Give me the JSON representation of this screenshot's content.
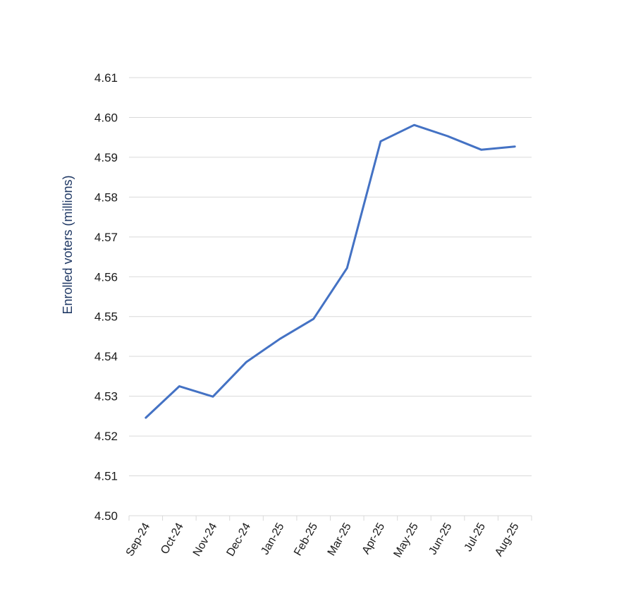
{
  "colors": {
    "series": "#4472c4",
    "axis_title": "#1f3864"
  },
  "chart_data": {
    "type": "line",
    "title": "",
    "xlabel": "",
    "ylabel": "Enrolled voters (millions)",
    "ylim": [
      4.5,
      4.61
    ],
    "yticks": [
      "4.50",
      "4.51",
      "4.52",
      "4.53",
      "4.54",
      "4.55",
      "4.56",
      "4.57",
      "4.58",
      "4.59",
      "4.60",
      "4.61"
    ],
    "grid": true,
    "categories": [
      "Sep-24",
      "Oct-24",
      "Nov-24",
      "Dec-24",
      "Jan-25",
      "Feb-25",
      "Mar-25",
      "Apr-25",
      "May-25",
      "Jun-25",
      "Jul-25",
      "Aug-25"
    ],
    "series": [
      {
        "name": "Enrolled voters",
        "values": [
          4.5246,
          4.5325,
          4.5299,
          4.5386,
          4.5444,
          4.5494,
          4.5622,
          4.594,
          4.5981,
          4.5953,
          4.5919,
          4.5927
        ]
      }
    ]
  }
}
